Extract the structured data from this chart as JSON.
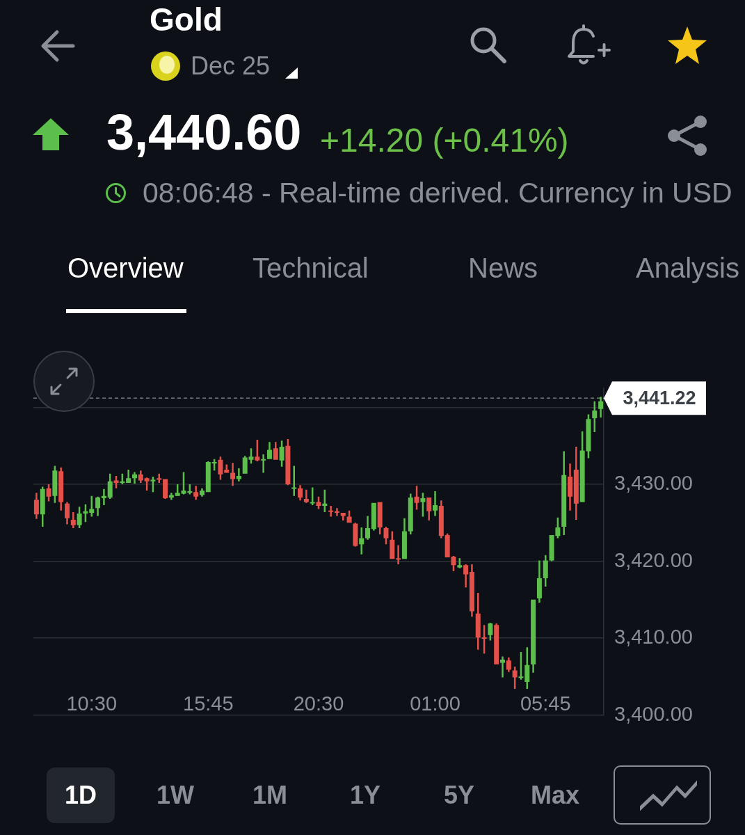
{
  "chart_data": {
    "type": "candlestick",
    "title": "Gold",
    "subtitle": "Dec 25",
    "categories": [
      null,
      null,
      null,
      null,
      null,
      null,
      null,
      null,
      null,
      "10:30",
      null,
      null,
      null,
      null,
      null,
      null,
      null,
      null,
      null,
      null,
      null,
      null,
      null,
      null,
      null,
      null,
      null,
      null,
      "15:45",
      null,
      null,
      null,
      null,
      null,
      null,
      null,
      null,
      null,
      null,
      null,
      null,
      null,
      null,
      null,
      null,
      null,
      "20:30",
      null,
      null,
      null,
      null,
      null,
      null,
      null,
      null,
      null,
      null,
      null,
      null,
      null,
      null,
      null,
      null,
      null,
      null,
      "01:00",
      null,
      null,
      null,
      null,
      null,
      null,
      null,
      null,
      null,
      null,
      null,
      null,
      null,
      null,
      null,
      null,
      null,
      "05:45",
      null,
      null,
      null,
      null,
      null,
      null,
      null,
      null,
      null
    ],
    "ohlc": [
      [
        3428.0,
        3428.9,
        3425.5,
        3426.1
      ],
      [
        3426.1,
        3429.7,
        3424.5,
        3429.4
      ],
      [
        3429.5,
        3430.0,
        3427.8,
        3428.4
      ],
      [
        3428.5,
        3432.4,
        3427.6,
        3431.8
      ],
      [
        3431.7,
        3432.2,
        3426.6,
        3427.7
      ],
      [
        3427.5,
        3427.7,
        3424.8,
        3425.6
      ],
      [
        3425.4,
        3426.4,
        3424.3,
        3424.7
      ],
      [
        3424.7,
        3427.1,
        3424.3,
        3426.2
      ],
      [
        3426.2,
        3427.4,
        3425.1,
        3426.5
      ],
      [
        3426.3,
        3428.5,
        3425.8,
        3426.8
      ],
      [
        3426.9,
        3428.4,
        3425.9,
        3428.3
      ],
      [
        3428.2,
        3429.4,
        3427.3,
        3428.5
      ],
      [
        3428.3,
        3431.4,
        3428.1,
        3430.4
      ],
      [
        3430.5,
        3431.1,
        3429.5,
        3430.2
      ],
      [
        3430.2,
        3431.4,
        3430.0,
        3430.4
      ],
      [
        3430.2,
        3431.9,
        3430.2,
        3430.8
      ],
      [
        3430.8,
        3431.6,
        3430.1,
        3431.3
      ],
      [
        3431.3,
        3431.8,
        3430.2,
        3430.5
      ],
      [
        3430.8,
        3430.9,
        3429.2,
        3430.4
      ],
      [
        3430.4,
        3431.0,
        3429.0,
        3430.6
      ],
      [
        3430.8,
        3431.4,
        3430.2,
        3430.6
      ],
      [
        3430.7,
        3430.7,
        3428.1,
        3428.2
      ],
      [
        3428.3,
        3428.9,
        3428.0,
        3428.6
      ],
      [
        3428.5,
        3430.0,
        3428.5,
        3428.9
      ],
      [
        3428.8,
        3431.6,
        3428.7,
        3429.2
      ],
      [
        3429.0,
        3430.0,
        3428.7,
        3429.1
      ],
      [
        3429.0,
        3429.8,
        3428.0,
        3428.4
      ],
      [
        3428.6,
        3429.5,
        3428.4,
        3429.2
      ],
      [
        3429.0,
        3433.0,
        3429.0,
        3432.9
      ],
      [
        3432.8,
        3433.3,
        3431.8,
        3432.9
      ],
      [
        3433.2,
        3433.6,
        3430.6,
        3431.3
      ],
      [
        3431.9,
        3432.6,
        3431.5,
        3431.5
      ],
      [
        3431.5,
        3432.8,
        3429.8,
        3430.7
      ],
      [
        3430.7,
        3432.1,
        3430.4,
        3431.1
      ],
      [
        3431.4,
        3433.7,
        3431.4,
        3433.5
      ],
      [
        3433.2,
        3434.7,
        3432.7,
        3433.6
      ],
      [
        3433.6,
        3435.8,
        3433.0,
        3433.1
      ],
      [
        3433.2,
        3433.9,
        3431.5,
        3433.3
      ],
      [
        3433.3,
        3435.5,
        3433.3,
        3434.5
      ],
      [
        3434.7,
        3435.5,
        3433.2,
        3433.2
      ],
      [
        3433.1,
        3435.7,
        3432.3,
        3434.9
      ],
      [
        3435.0,
        3435.9,
        3429.9,
        3430.0
      ],
      [
        3429.5,
        3432.4,
        3428.5,
        3429.6
      ],
      [
        3429.5,
        3429.9,
        3427.9,
        3428.3
      ],
      [
        3428.1,
        3429.3,
        3427.6,
        3427.7
      ],
      [
        3427.6,
        3429.6,
        3427.3,
        3427.7
      ],
      [
        3427.7,
        3428.4,
        3426.8,
        3427.2
      ],
      [
        3427.2,
        3429.3,
        3426.4,
        3427.5
      ],
      [
        3426.6,
        3427.2,
        3425.8,
        3426.5
      ],
      [
        3426.5,
        3426.9,
        3425.9,
        3426.3
      ],
      [
        3426.3,
        3426.3,
        3425.3,
        3425.9
      ],
      [
        3425.8,
        3426.6,
        3425.0,
        3425.0
      ],
      [
        3424.9,
        3425.0,
        3421.9,
        3422.0
      ],
      [
        3422.2,
        3424.4,
        3420.9,
        3423.0
      ],
      [
        3423.0,
        3425.9,
        3422.8,
        3424.3
      ],
      [
        3424.2,
        3427.6,
        3424.0,
        3427.6
      ],
      [
        3427.7,
        3427.7,
        3423.5,
        3424.4
      ],
      [
        3424.3,
        3424.5,
        3422.2,
        3423.0
      ],
      [
        3422.8,
        3423.9,
        3420.3,
        3420.3
      ],
      [
        3420.4,
        3422.1,
        3419.6,
        3420.3
      ],
      [
        3420.3,
        3425.6,
        3420.3,
        3423.9
      ],
      [
        3423.9,
        3428.8,
        3423.5,
        3428.3
      ],
      [
        3428.4,
        3429.8,
        3426.7,
        3427.6
      ],
      [
        3427.7,
        3428.9,
        3425.8,
        3428.2
      ],
      [
        3428.3,
        3428.3,
        3425.3,
        3426.5
      ],
      [
        3426.6,
        3429.1,
        3425.9,
        3427.3
      ],
      [
        3427.2,
        3427.9,
        3423.0,
        3423.3
      ],
      [
        3423.4,
        3423.6,
        3420.5,
        3420.5
      ],
      [
        3420.6,
        3420.7,
        3418.7,
        3419.5
      ],
      [
        3419.2,
        3420.4,
        3419.1,
        3419.5
      ],
      [
        3419.5,
        3419.6,
        3416.6,
        3418.3
      ],
      [
        3418.6,
        3419.6,
        3412.8,
        3413.5
      ],
      [
        3413.2,
        3415.9,
        3408.5,
        3410.1
      ],
      [
        3410.1,
        3411.7,
        3408.0,
        3410.0
      ],
      [
        3410.4,
        3412.0,
        3409.7,
        3411.9
      ],
      [
        3411.7,
        3411.9,
        3406.6,
        3406.6
      ],
      [
        3406.8,
        3407.6,
        3404.9,
        3407.2
      ],
      [
        3407.1,
        3407.5,
        3405.6,
        3405.9
      ],
      [
        3405.8,
        3406.3,
        3403.4,
        3404.9
      ],
      [
        3404.9,
        3408.2,
        3404.6,
        3405.0
      ],
      [
        3404.3,
        3408.8,
        3403.4,
        3406.5
      ],
      [
        3406.6,
        3415.0,
        3405.5,
        3415.0
      ],
      [
        3415.2,
        3420.1,
        3414.6,
        3417.8
      ],
      [
        3417.8,
        3420.8,
        3416.7,
        3420.1
      ],
      [
        3420.1,
        3423.4,
        3420.0,
        3423.4
      ],
      [
        3423.3,
        3425.7,
        3423.0,
        3424.4
      ],
      [
        3424.5,
        3434.3,
        3423.4,
        3431.2
      ],
      [
        3431.0,
        3432.7,
        3426.6,
        3428.4
      ],
      [
        3431.9,
        3434.9,
        3425.4,
        3427.5
      ],
      [
        3427.7,
        3436.9,
        3427.7,
        3434.4
      ],
      [
        3434.3,
        3439.1,
        3433.4,
        3438.5
      ],
      [
        3438.6,
        3440.8,
        3436.8,
        3439.6
      ],
      [
        3439.8,
        3441.4,
        3438.7,
        3440.8
      ]
    ],
    "colors": [
      "#e4504a",
      "#5cbf4c",
      "#e4504a",
      "#5cbf4c",
      "#e4504a",
      "#e4504a",
      "#e4504a",
      "#5cbf4c",
      "#5cbf4c",
      "#5cbf4c",
      "#5cbf4c",
      "#5cbf4c",
      "#5cbf4c",
      "#e4504a",
      "#5cbf4c",
      "#5cbf4c",
      "#5cbf4c",
      "#e4504a",
      "#e4504a",
      "#5cbf4c",
      "#e4504a",
      "#e4504a",
      "#5cbf4c",
      "#5cbf4c",
      "#5cbf4c",
      "#5cbf4c",
      "#e4504a",
      "#5cbf4c",
      "#5cbf4c",
      "#5cbf4c",
      "#e4504a",
      "#e4504a",
      "#e4504a",
      "#5cbf4c",
      "#5cbf4c",
      "#5cbf4c",
      "#e4504a",
      "#5cbf4c",
      "#5cbf4c",
      "#e4504a",
      "#5cbf4c",
      "#e4504a",
      "#5cbf4c",
      "#e4504a",
      "#e4504a",
      "#5cbf4c",
      "#e4504a",
      "#5cbf4c",
      "#e4504a",
      "#e4504a",
      "#e4504a",
      "#e4504a",
      "#e4504a",
      "#5cbf4c",
      "#5cbf4c",
      "#5cbf4c",
      "#e4504a",
      "#e4504a",
      "#e4504a",
      "#e4504a",
      "#5cbf4c",
      "#5cbf4c",
      "#e4504a",
      "#5cbf4c",
      "#e4504a",
      "#5cbf4c",
      "#e4504a",
      "#e4504a",
      "#e4504a",
      "#5cbf4c",
      "#e4504a",
      "#e4504a",
      "#e4504a",
      "#e4504a",
      "#5cbf4c",
      "#e4504a",
      "#5cbf4c",
      "#e4504a",
      "#e4504a",
      "#5cbf4c",
      "#5cbf4c",
      "#5cbf4c",
      "#5cbf4c",
      "#5cbf4c",
      "#5cbf4c",
      "#5cbf4c",
      "#5cbf4c",
      "#e4504a",
      "#e4504a",
      "#5cbf4c",
      "#5cbf4c",
      "#5cbf4c",
      "#5cbf4c"
    ],
    "ylim": [
      3400,
      3442.5
    ],
    "yticks": [
      {
        "value": 3400,
        "label": "3,400.00"
      },
      {
        "value": 3410,
        "label": "3,410.00"
      },
      {
        "value": 3420,
        "label": "3,420.00"
      },
      {
        "value": 3430,
        "label": "3,430.00"
      },
      {
        "value": 3440,
        "label": null
      }
    ],
    "grid": "y",
    "ref_lines": [
      {
        "axis": "y",
        "value": 3441.22,
        "label": "3,441.22",
        "color": "#8a8f96",
        "line_style": "dashed"
      }
    ],
    "annotations": [
      "3,440.60",
      "+14.20 (+0.41%)",
      "08:06:48 - Real-time derived. Currency in USD",
      "Overview",
      "Technical",
      "News",
      "Analysis",
      "1D",
      "1W",
      "1M",
      "1Y",
      "5Y",
      "Max"
    ]
  }
}
